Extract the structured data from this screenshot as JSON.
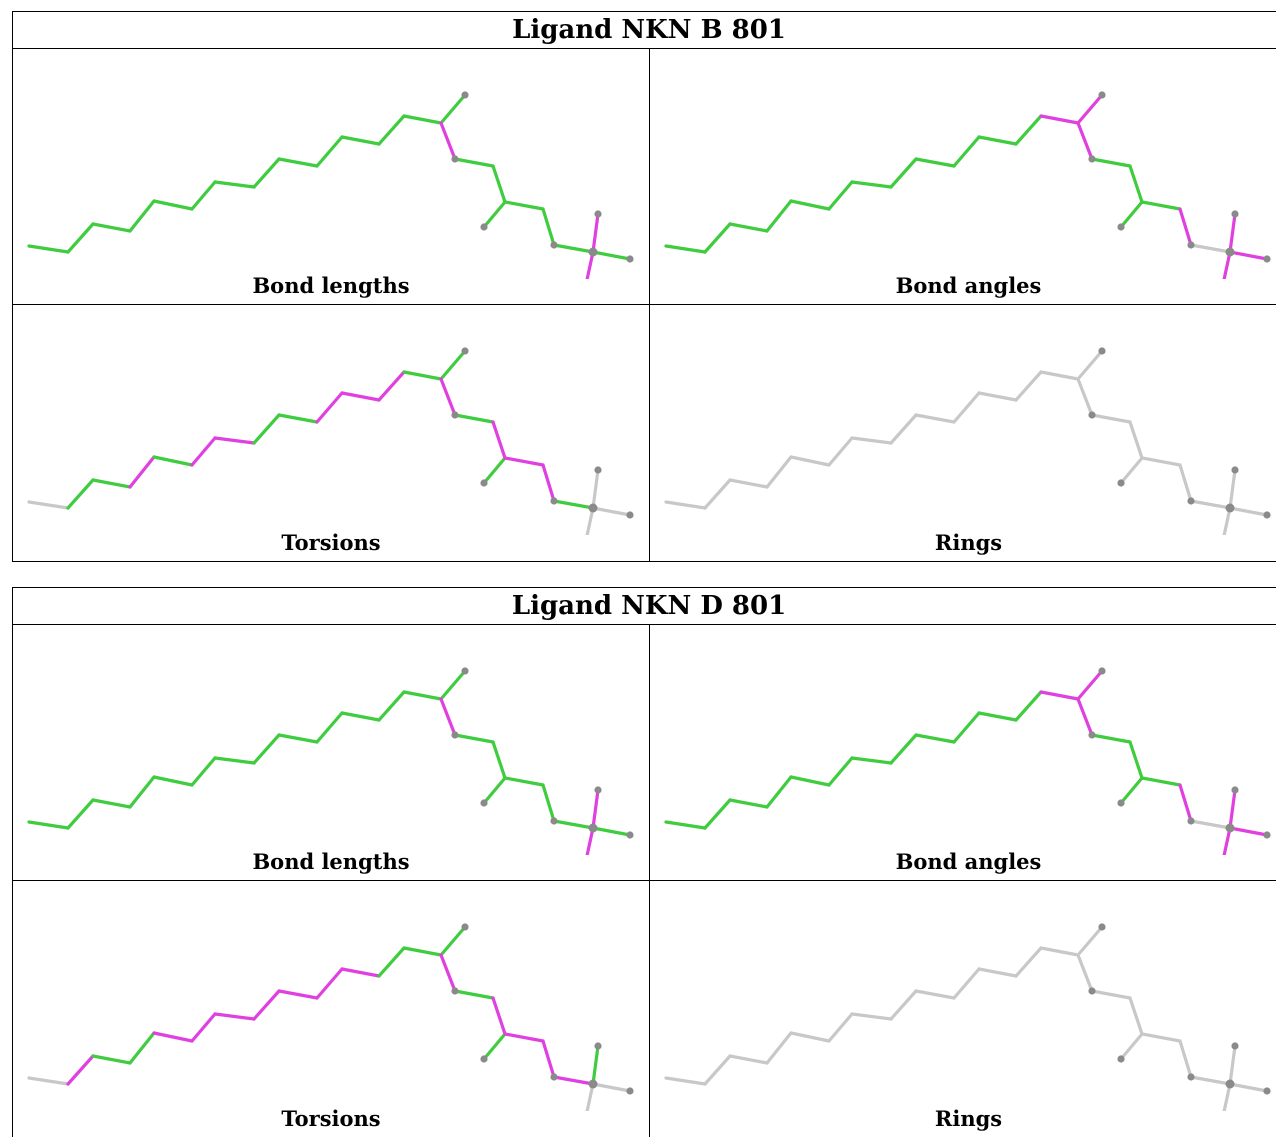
{
  "colors": {
    "ok": "#3fcc3f",
    "outlier": "#e040e0",
    "neutral": "#c8c8c8",
    "atom": "#8a8a8a"
  },
  "ligands": [
    {
      "title": "Ligand NKN B 801",
      "panels": [
        {
          "label": "Bond lengths",
          "mode": "bonds"
        },
        {
          "label": "Bond angles",
          "mode": "angles"
        },
        {
          "label": "Torsions",
          "mode": "torsions"
        },
        {
          "label": "Rings",
          "mode": "rings"
        }
      ]
    },
    {
      "title": "Ligand NKN D 801",
      "panels": [
        {
          "label": "Bond lengths",
          "mode": "bonds"
        },
        {
          "label": "Bond angles",
          "mode": "angles"
        },
        {
          "label": "Torsions",
          "mode": "torsions_d"
        },
        {
          "label": "Rings",
          "mode": "rings"
        }
      ]
    }
  ]
}
